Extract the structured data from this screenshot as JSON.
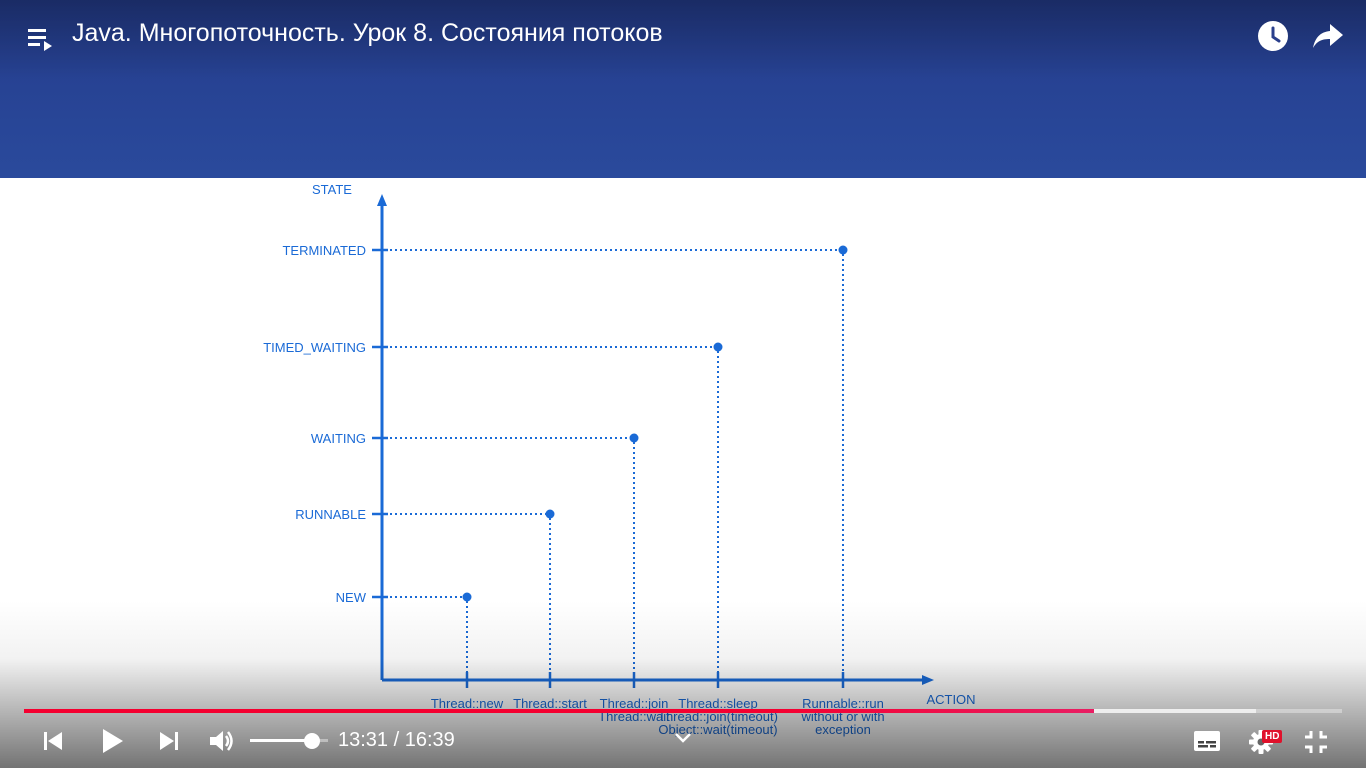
{
  "player": {
    "title": "Java. Многопоточность. Урок 8. Состояния потоков",
    "current_time": "13:31",
    "separator": " / ",
    "duration": "16:39",
    "played_fraction": 0.812,
    "buffered_fraction": 0.935,
    "volume_fraction": 0.8,
    "hd_label": "HD",
    "accent_color": "#f50030",
    "icons": [
      "playlist-icon",
      "watch-later-icon",
      "share-icon",
      "previous-icon",
      "play-icon",
      "next-icon",
      "volume-icon",
      "chevron-down-icon",
      "subtitles-icon",
      "settings-icon",
      "exit-fullscreen-icon"
    ]
  },
  "chart_data": {
    "type": "line",
    "ylabel": "STATE",
    "xlabel": "ACTION",
    "y_categories": [
      "NEW",
      "RUNNABLE",
      "WAITING",
      "TIMED_WAITING",
      "TERMINATED"
    ],
    "x_categories": [
      [
        "Thread::new"
      ],
      [
        "Thread::start"
      ],
      [
        "Thread::join",
        "Thread::wait"
      ],
      [
        "Thread::sleep",
        "Thread::join(timeout)",
        "Object::wait(timeout)"
      ],
      [
        "Runnable::run",
        "without or with",
        "exception"
      ]
    ],
    "points": [
      {
        "x": "Thread::new",
        "y": "NEW"
      },
      {
        "x": "Thread::start",
        "y": "RUNNABLE"
      },
      {
        "x": "Thread::join",
        "y": "WAITING"
      },
      {
        "x": "Thread::sleep",
        "y": "TIMED_WAITING"
      },
      {
        "x": "Runnable::run",
        "y": "TERMINATED"
      }
    ],
    "color": "#1a6ad6",
    "grid": false
  }
}
